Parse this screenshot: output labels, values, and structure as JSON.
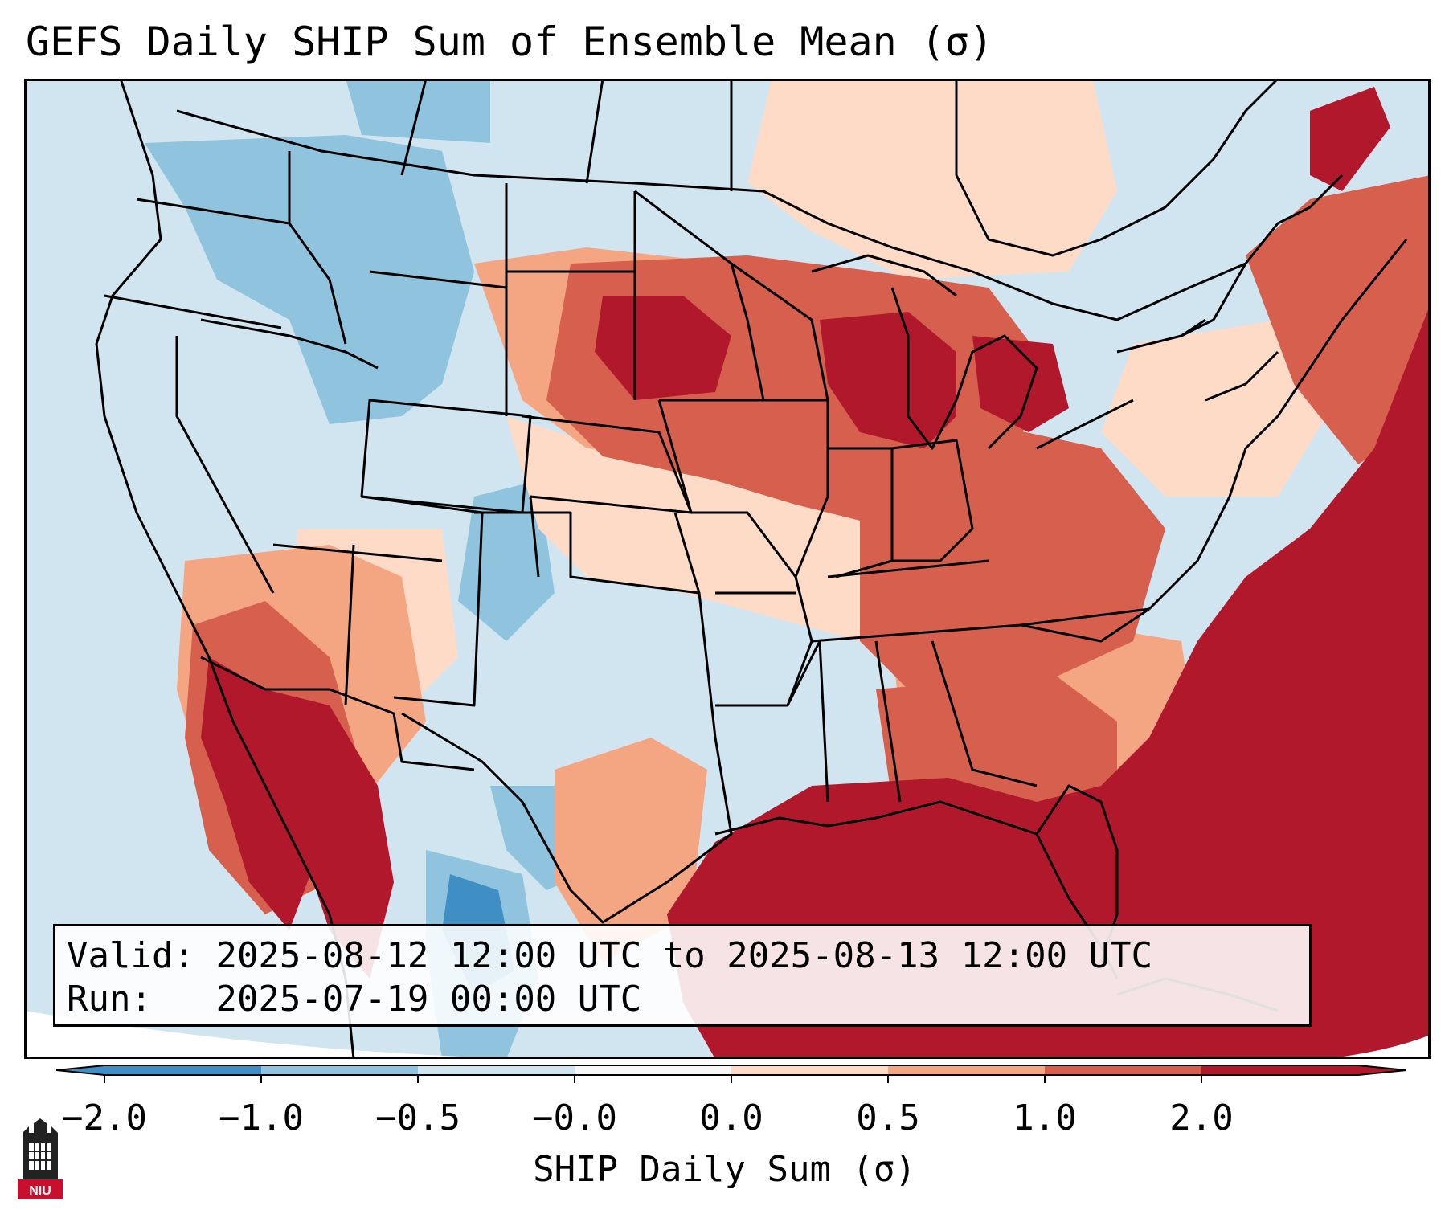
{
  "title": "GEFS Daily SHIP Sum of Ensemble Mean (σ)",
  "info": {
    "valid_label": "Valid:",
    "valid_value": "2025-08-12 12:00 UTC to 2025-08-13 12:00 UTC",
    "run_label": "Run:",
    "run_value": "2025-07-19 00:00 UTC"
  },
  "colorbar": {
    "label": "SHIP Daily Sum (σ)",
    "ticks": [
      "−2.0",
      "−1.0",
      "−0.5",
      "−0.0",
      "0.0",
      "0.5",
      "1.0",
      "2.0"
    ],
    "colors": [
      "#3f8fc4",
      "#8fc3de",
      "#d1e5f0",
      "#f7f7f7",
      "#fddbc7",
      "#f4a582",
      "#d6604d",
      "#b2182b"
    ]
  },
  "map": {
    "region": "Contiguous United States",
    "colors": {
      "strong_negative": "#3f8fc4",
      "moderate_negative": "#8fc3de",
      "weak_negative": "#d1e5f0",
      "weak_positive": "#fddbc7",
      "moderate_positive": "#f4a582",
      "positive": "#d6604d",
      "strong_positive": "#b2182b",
      "outline": "#000000"
    }
  },
  "logo": {
    "text": "NIU"
  }
}
